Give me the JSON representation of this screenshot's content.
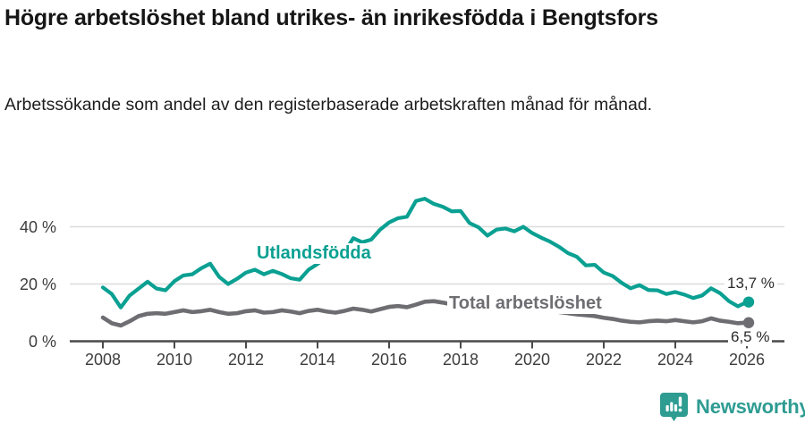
{
  "header": {
    "title": "Högre arbetslöshet bland utrikes- än inrikesfödda i Bengtsfors",
    "subtitle": "Arbetssökande som andel av den registerbaserade arbetskraften månad för månad."
  },
  "chart_data": {
    "type": "line",
    "title": "Högre arbetslöshet bland utrikes- än inrikesfödda i Bengtsfors",
    "subtitle": "Arbetssökande som andel av den registerbaserade arbetskraften månad för månad.",
    "unit": "%",
    "grid": "horizontal",
    "legend_position": "inline-labels",
    "ylim": [
      0,
      52
    ],
    "xlim": [
      2008,
      2026.1
    ],
    "yticks": [
      0,
      20,
      40
    ],
    "ytick_labels": [
      "0 %",
      "20 %",
      "40 %"
    ],
    "xticks": [
      2008,
      2010,
      2012,
      2014,
      2016,
      2018,
      2020,
      2022,
      2024,
      2026
    ],
    "x": [
      2008,
      2008.25,
      2008.5,
      2008.75,
      2009,
      2009.25,
      2009.5,
      2009.75,
      2010,
      2010.25,
      2010.5,
      2010.75,
      2011,
      2011.25,
      2011.5,
      2011.75,
      2012,
      2012.25,
      2012.5,
      2012.75,
      2013,
      2013.25,
      2013.5,
      2013.75,
      2014,
      2014.25,
      2014.5,
      2014.75,
      2015,
      2015.25,
      2015.5,
      2015.75,
      2016,
      2016.25,
      2016.5,
      2016.75,
      2017,
      2017.25,
      2017.5,
      2017.75,
      2018,
      2018.25,
      2018.5,
      2018.75,
      2019,
      2019.25,
      2019.5,
      2019.75,
      2020,
      2020.25,
      2020.5,
      2020.75,
      2021,
      2021.25,
      2021.5,
      2021.75,
      2022,
      2022.25,
      2022.5,
      2022.75,
      2023,
      2023.25,
      2023.5,
      2023.75,
      2024,
      2024.25,
      2024.5,
      2024.75,
      2025,
      2025.25,
      2025.5,
      2025.75,
      2026
    ],
    "series": [
      {
        "name": "Utlandsfödda",
        "color": "#0AA092",
        "end_label": "13,7 %",
        "end_value": 13.7,
        "values": [
          18.8,
          16.5,
          11.8,
          16.0,
          18.4,
          20.8,
          18.4,
          17.8,
          21.0,
          23.0,
          23.4,
          25.5,
          27.1,
          22.5,
          20.0,
          21.8,
          24.0,
          25.0,
          23.4,
          24.6,
          23.5,
          22.0,
          21.5,
          25.0,
          27.0,
          29.3,
          28.6,
          31.0,
          36.0,
          34.6,
          35.5,
          39.0,
          41.5,
          43.0,
          43.5,
          49.0,
          49.8,
          48.0,
          47.0,
          45.4,
          45.5,
          41.3,
          39.8,
          36.9,
          39.0,
          39.4,
          38.4,
          40.0,
          37.8,
          36.2,
          34.8,
          33.0,
          30.8,
          29.5,
          26.5,
          26.7,
          24.0,
          22.8,
          20.4,
          18.5,
          19.6,
          17.9,
          17.8,
          16.5,
          17.2,
          16.3,
          15.1,
          16.0,
          18.5,
          16.8,
          14.0,
          12.2,
          13.7
        ]
      },
      {
        "name": "Total arbetslöshet",
        "color": "#6E6E72",
        "end_label": "6,5 %",
        "end_value": 6.5,
        "values": [
          8.3,
          6.3,
          5.5,
          7.0,
          8.8,
          9.6,
          9.8,
          9.6,
          10.2,
          10.8,
          10.2,
          10.5,
          11.0,
          10.2,
          9.6,
          9.8,
          10.5,
          10.8,
          10.0,
          10.2,
          10.8,
          10.4,
          9.8,
          10.6,
          11.0,
          10.4,
          10.0,
          10.6,
          11.4,
          11.0,
          10.4,
          11.2,
          12.0,
          12.3,
          11.9,
          12.8,
          13.8,
          14.0,
          13.5,
          12.9,
          13.1,
          12.7,
          12.4,
          12.2,
          12.4,
          12.0,
          11.7,
          11.9,
          12.0,
          11.6,
          10.8,
          10.2,
          9.8,
          9.4,
          9.1,
          8.8,
          8.2,
          7.8,
          7.2,
          6.8,
          6.6,
          7.0,
          7.2,
          7.0,
          7.4,
          7.0,
          6.6,
          7.0,
          8.0,
          7.2,
          6.8,
          6.3,
          6.5
        ]
      }
    ]
  },
  "footer": {
    "brand": "Newsworthy",
    "brand_color": "#2F9C92"
  }
}
